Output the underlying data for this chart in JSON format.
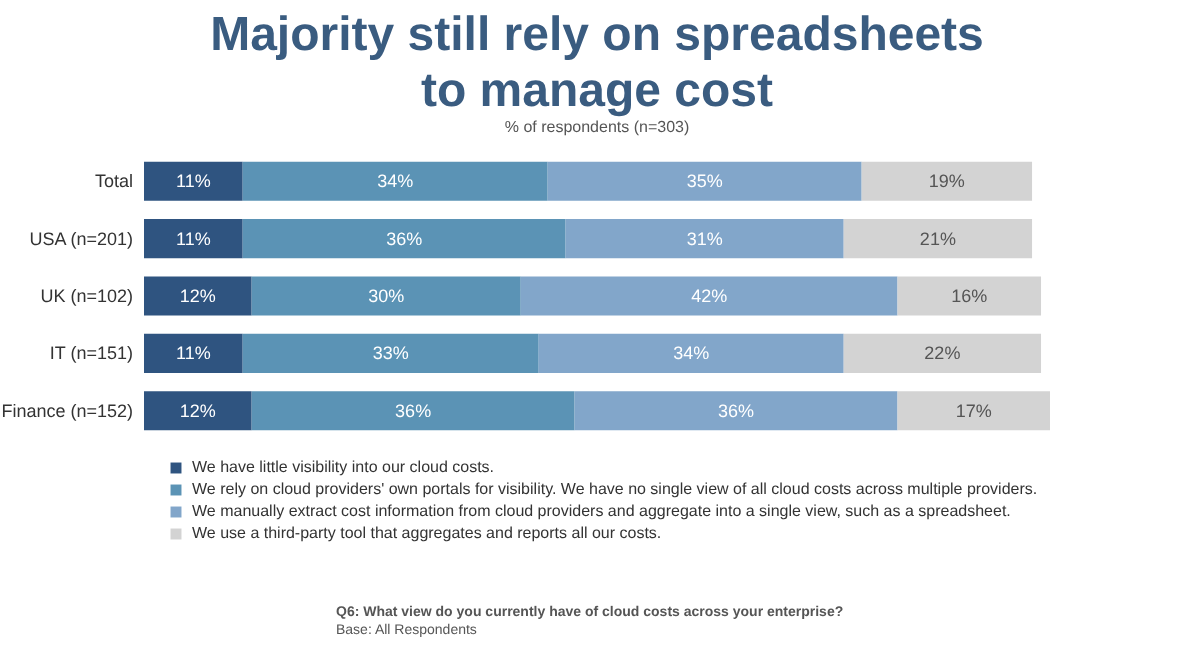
{
  "chart_data": {
    "type": "bar",
    "orientation": "horizontal",
    "stacked": true,
    "title": "Majority still rely on spreadsheets\nto manage cost",
    "subtitle": "% of respondents (n=303)",
    "categories": [
      "Total",
      "USA (n=201)",
      "UK (n=102)",
      "IT (n=151)",
      "Finance (n=152)"
    ],
    "xlim": [
      0,
      101
    ],
    "tick_labels": "y",
    "legend": "bottom",
    "series": [
      {
        "name": "We have little visibility into our cloud costs.",
        "color": "#2f5480",
        "values": [
          11,
          11,
          12,
          11,
          12
        ],
        "value_labels": [
          "11%",
          "11%",
          "12%",
          "11%",
          "12%"
        ]
      },
      {
        "name": "We rely on cloud providers' own portals for visibility. We have no single view of all cloud costs across multiple providers.",
        "color": "#5b93b5",
        "values": [
          34,
          36,
          30,
          33,
          36
        ],
        "value_labels": [
          "34%",
          "36%",
          "30%",
          "33%",
          "36%"
        ]
      },
      {
        "name": "We manually extract cost information from cloud providers and aggregate into a single view, such as a spreadsheet.",
        "color": "#82a6ca",
        "values": [
          35,
          31,
          42,
          34,
          36
        ],
        "value_labels": [
          "35%",
          "31%",
          "42%",
          "34%",
          "36%"
        ]
      },
      {
        "name": "We use a third-party tool that aggregates and reports all our costs.",
        "color": "#d3d3d3",
        "values": [
          19,
          21,
          16,
          22,
          17
        ],
        "value_labels": [
          "19%",
          "21%",
          "16%",
          "22%",
          "17%"
        ]
      }
    ],
    "annotations": [
      "Q6: What view do you currently have of cloud costs across your enterprise?",
      "Base: All Respondents"
    ]
  }
}
